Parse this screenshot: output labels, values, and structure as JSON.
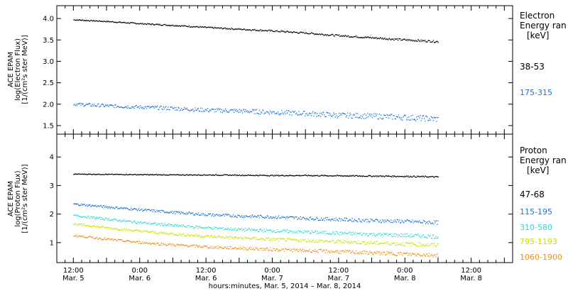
{
  "chart_data": [
    {
      "type": "scatter",
      "panel": "electron",
      "ylabel_lines": [
        "ACE EPAM",
        "log(Electron Flux)",
        "[1/(cm²s ster MeV)]"
      ],
      "ylim": [
        1.3,
        4.3
      ],
      "yticks": [
        1.5,
        2.0,
        2.5,
        3.0,
        3.5,
        4.0
      ],
      "ytick_labels": [
        "1.5",
        "2.0",
        "2.5",
        "3.0",
        "3.5",
        "4.0"
      ],
      "legend_title": [
        "Electron",
        "Energy ran",
        "[keV]"
      ],
      "series": [
        {
          "name": "38-53",
          "color": "#000000",
          "x": [
            0,
            12,
            24,
            36,
            48,
            60,
            72,
            84,
            96,
            108,
            120,
            132
          ],
          "y": [
            3.97,
            3.93,
            3.88,
            3.84,
            3.79,
            3.75,
            3.71,
            3.66,
            3.6,
            3.55,
            3.5,
            3.46
          ]
        },
        {
          "name": "175-315",
          "color": "#1a73d9",
          "x": [
            0,
            12,
            24,
            36,
            48,
            60,
            72,
            84,
            96,
            108,
            120,
            132
          ],
          "y": [
            2.0,
            1.96,
            1.93,
            1.9,
            1.86,
            1.84,
            1.81,
            1.78,
            1.74,
            1.72,
            1.69,
            1.65
          ]
        }
      ]
    },
    {
      "type": "scatter",
      "panel": "proton",
      "ylabel_lines": [
        "ACE EPAM",
        "log(Proton Flux)",
        "[1/(cm²s ster MeV)]"
      ],
      "ylim": [
        0.3,
        4.8
      ],
      "yticks": [
        1,
        2,
        3,
        4
      ],
      "ytick_labels": [
        "1",
        "2",
        "3",
        "4"
      ],
      "legend_title": [
        "Proton",
        "Energy ran",
        "[keV]"
      ],
      "series": [
        {
          "name": "47-68",
          "color": "#000000",
          "x": [
            0,
            12,
            24,
            36,
            48,
            60,
            72,
            84,
            96,
            108,
            120,
            132
          ],
          "y": [
            3.4,
            3.39,
            3.38,
            3.37,
            3.37,
            3.36,
            3.35,
            3.35,
            3.34,
            3.33,
            3.32,
            3.3
          ]
        },
        {
          "name": "115-195",
          "color": "#1a73d9",
          "x": [
            0,
            12,
            24,
            36,
            48,
            60,
            72,
            84,
            96,
            108,
            120,
            132
          ],
          "y": [
            2.35,
            2.25,
            2.15,
            2.06,
            1.98,
            1.93,
            1.9,
            1.85,
            1.81,
            1.77,
            1.74,
            1.7
          ]
        },
        {
          "name": "310-580",
          "color": "#22dcd0",
          "x": [
            0,
            12,
            24,
            36,
            48,
            60,
            72,
            84,
            96,
            108,
            120,
            132
          ],
          "y": [
            1.95,
            1.82,
            1.7,
            1.6,
            1.52,
            1.46,
            1.41,
            1.37,
            1.33,
            1.29,
            1.25,
            1.21
          ]
        },
        {
          "name": "795-1193",
          "color": "#c8e000",
          "x": [
            0,
            12,
            24,
            36,
            48,
            60,
            72,
            84,
            96,
            108,
            120,
            132
          ],
          "y": [
            1.65,
            1.52,
            1.4,
            1.3,
            1.22,
            1.16,
            1.11,
            1.07,
            1.03,
            0.99,
            0.95,
            0.91
          ]
        },
        {
          "name": "1060-1900",
          "color": "#f08c14",
          "x": [
            0,
            12,
            24,
            36,
            48,
            60,
            72,
            84,
            96,
            108,
            120,
            132
          ],
          "y": [
            1.25,
            1.12,
            1.0,
            0.92,
            0.85,
            0.8,
            0.76,
            0.72,
            0.68,
            0.64,
            0.6,
            0.56
          ]
        }
      ]
    }
  ],
  "xaxis": {
    "title": "hours:minutes, Mar. 5, 2014 – Mar. 8, 2014",
    "xlim": [
      -6,
      159
    ],
    "ticks": [
      {
        "x": 0,
        "time": "12:00",
        "date": "Mar. 5"
      },
      {
        "x": 24,
        "time": "0:00",
        "date": "Mar. 6"
      },
      {
        "x": 48,
        "time": "12:00",
        "date": "Mar. 6"
      },
      {
        "x": 72,
        "time": "0:00",
        "date": "Mar. 7"
      },
      {
        "x": 96,
        "time": "12:00",
        "date": "Mar. 7"
      },
      {
        "x": 120,
        "time": "0:00",
        "date": "Mar. 8"
      },
      {
        "x": 144,
        "time": "12:00",
        "date": "Mar. 8"
      }
    ],
    "minor_step": 3
  }
}
